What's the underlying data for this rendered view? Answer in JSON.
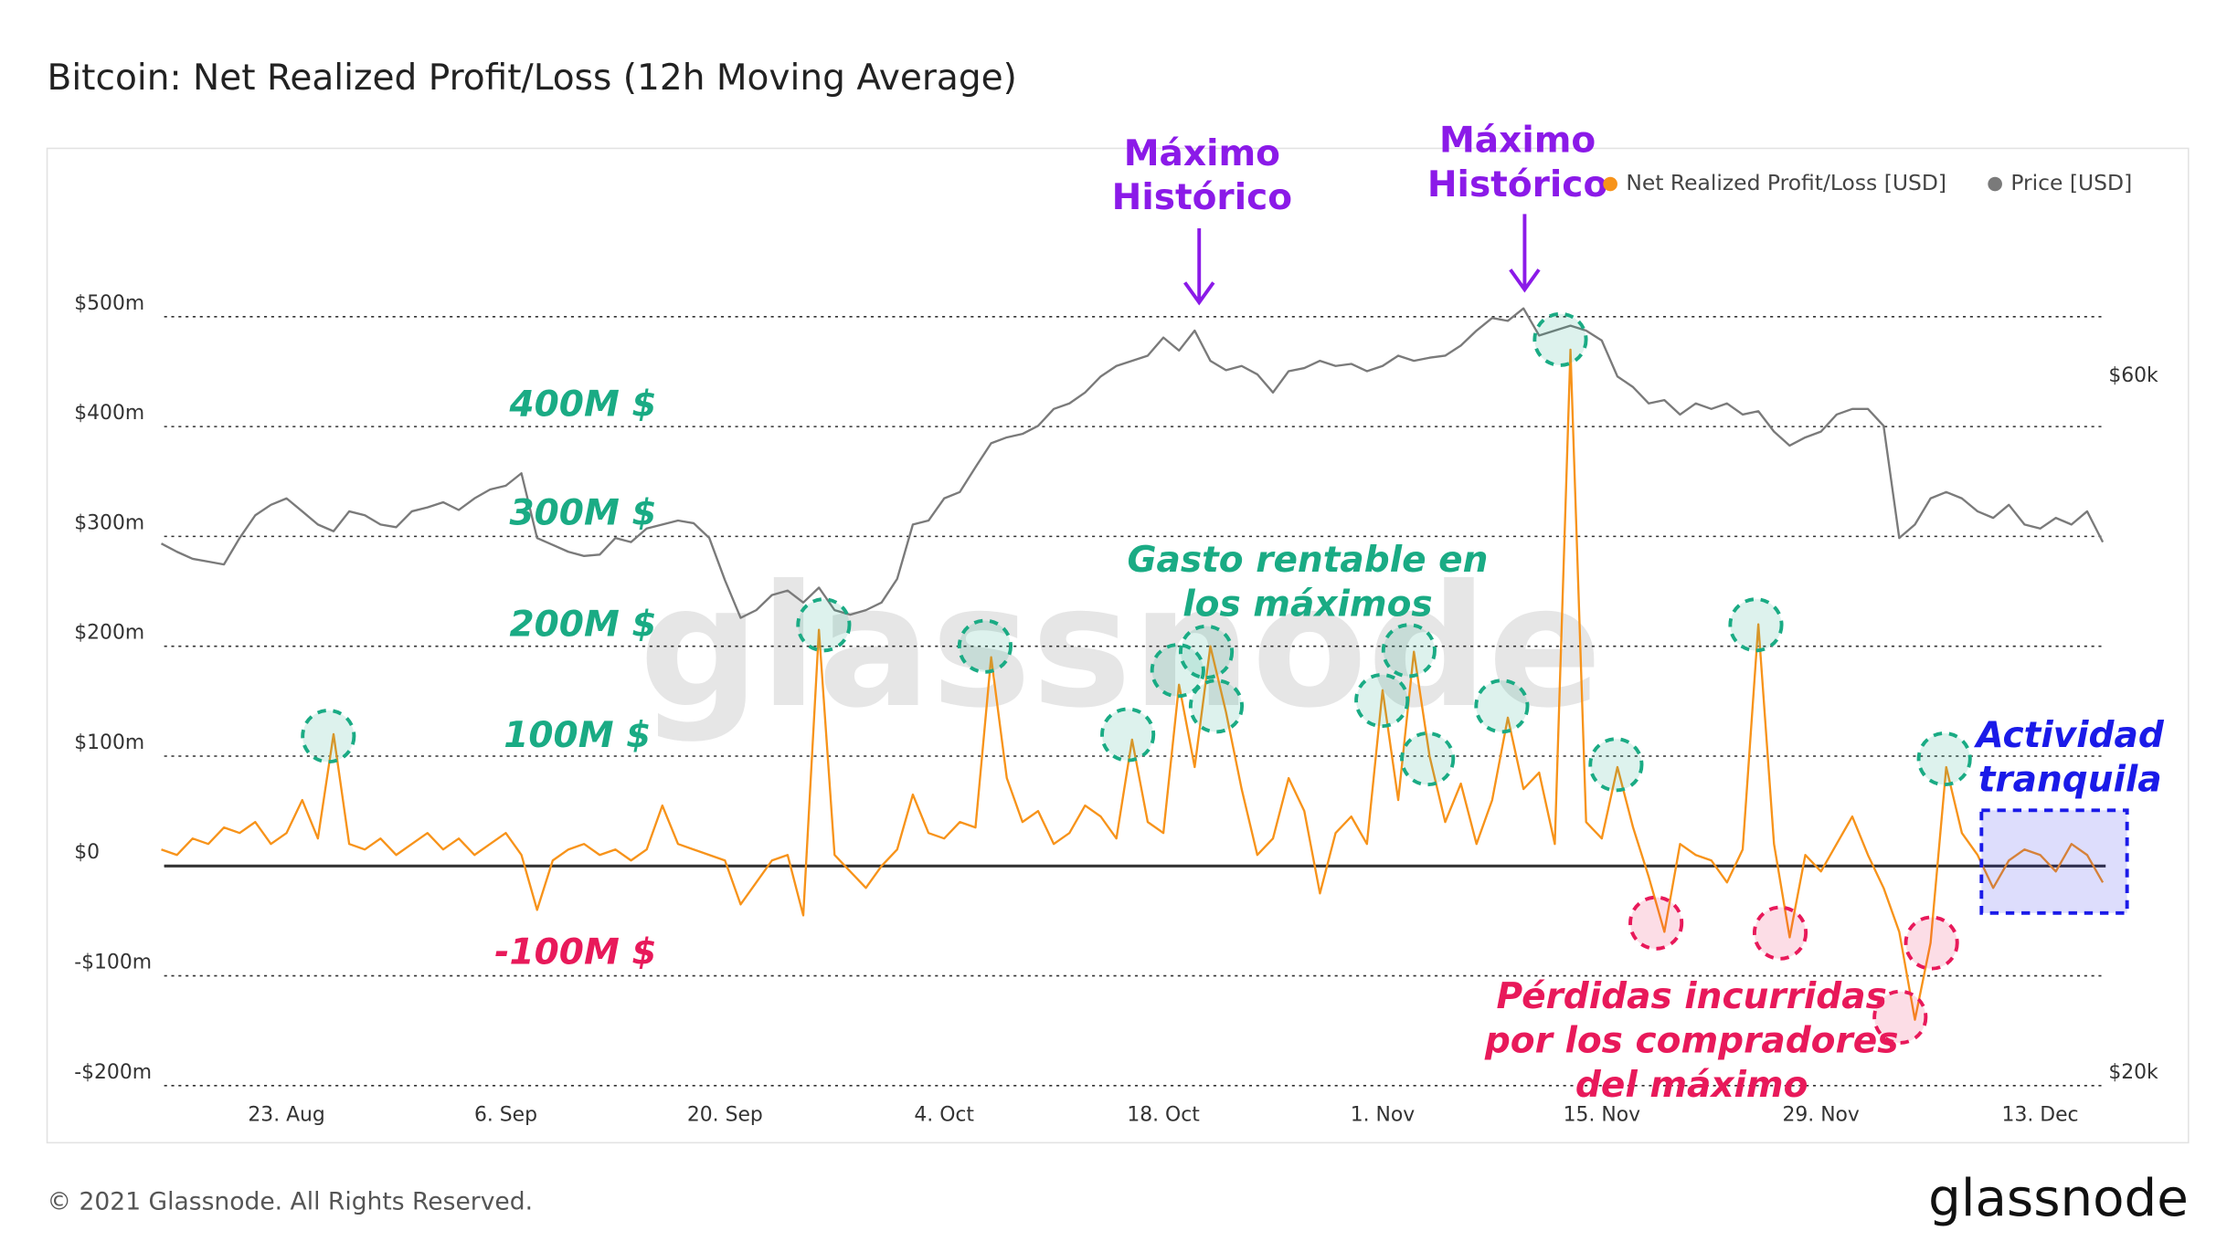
{
  "chart_data": {
    "type": "line",
    "title": "Bitcoin: Net Realized Profit/Loss (12h Moving Average)",
    "categories": [
      null,
      null,
      null,
      null,
      null,
      null,
      null,
      null,
      "23. Aug",
      null,
      null,
      null,
      null,
      null,
      null,
      null,
      null,
      null,
      null,
      null,
      null,
      null,
      "6. Sep",
      null,
      null,
      null,
      null,
      null,
      null,
      null,
      null,
      null,
      null,
      null,
      null,
      null,
      "20. Sep",
      null,
      null,
      null,
      null,
      null,
      null,
      null,
      null,
      null,
      null,
      null,
      null,
      null,
      "4. Oct",
      null,
      null,
      null,
      null,
      null,
      null,
      null,
      null,
      null,
      null,
      null,
      null,
      null,
      "18. Oct",
      null,
      null,
      null,
      null,
      null,
      null,
      null,
      null,
      null,
      null,
      null,
      null,
      null,
      "1. Nov",
      null,
      null,
      null,
      null,
      null,
      null,
      null,
      null,
      null,
      null,
      null,
      null,
      null,
      "15. Nov",
      null,
      null,
      null,
      null,
      null,
      null,
      null,
      null,
      null,
      null,
      null,
      null,
      null,
      "29. Nov",
      null,
      null,
      null,
      null,
      null,
      null,
      null,
      null,
      null,
      null,
      null,
      null,
      null,
      "13. Dec",
      null,
      null,
      null,
      null
    ],
    "series": [
      {
        "name": "Net Realized Profit/Loss [USD]",
        "color": "#f7931a",
        "values": [
          15,
          10,
          25,
          20,
          35,
          30,
          40,
          20,
          30,
          60,
          25,
          120,
          20,
          15,
          25,
          10,
          20,
          30,
          15,
          25,
          10,
          20,
          30,
          10,
          -40,
          5,
          15,
          20,
          10,
          15,
          5,
          15,
          55,
          20,
          15,
          10,
          5,
          -35,
          -15,
          5,
          10,
          -45,
          215,
          10,
          -5,
          -20,
          0,
          15,
          65,
          30,
          25,
          40,
          35,
          190,
          80,
          40,
          50,
          20,
          30,
          55,
          45,
          25,
          115,
          40,
          30,
          165,
          90,
          200,
          140,
          70,
          10,
          25,
          80,
          50,
          -25,
          30,
          45,
          20,
          160,
          60,
          195,
          100,
          40,
          75,
          20,
          60,
          135,
          70,
          85,
          20,
          470,
          40,
          25,
          90,
          35,
          -10,
          -60,
          20,
          10,
          5,
          -15,
          15,
          220,
          20,
          -65,
          10,
          -5,
          20,
          45,
          10,
          -20,
          -60,
          -140,
          -70,
          90,
          30,
          10,
          -20,
          5,
          15,
          10,
          -5,
          20,
          10,
          -15
        ]
      },
      {
        "name": "Price [USD]",
        "color": "#7a7a7a",
        "axis": "y2",
        "values": [
          46.1,
          45.5,
          45,
          44.8,
          44.6,
          46.5,
          48.2,
          49,
          49.5,
          48.5,
          47.5,
          47,
          48.5,
          48.2,
          47.5,
          47.3,
          48.5,
          48.8,
          49.2,
          48.6,
          49.5,
          50.2,
          50.5,
          51.5,
          46.5,
          46,
          45.5,
          45.2,
          45.3,
          46.5,
          46.2,
          47.2,
          47.5,
          47.8,
          47.6,
          46.5,
          43.5,
          41,
          41.5,
          42.5,
          42.8,
          42,
          43,
          41.5,
          41.2,
          41.5,
          42,
          43.6,
          47.5,
          47.8,
          49.5,
          50,
          52,
          54,
          54.5,
          54.8,
          55.5,
          57,
          57.5,
          58.5,
          60,
          61,
          61.5,
          62,
          63.8,
          62.5,
          64.5,
          61.5,
          60.6,
          61,
          60.2,
          58.5,
          60.5,
          60.8,
          61.5,
          61,
          61.2,
          60.5,
          61,
          62,
          61.5,
          61.8,
          62,
          63,
          64.5,
          65.8,
          65.5,
          66.8,
          64,
          64.5,
          65,
          64.5,
          63.5,
          60,
          59,
          57.5,
          57.8,
          56.5,
          57.5,
          57,
          57.5,
          56.5,
          56.8,
          55,
          53.8,
          54.5,
          55,
          56.5,
          57,
          57,
          55.5,
          46.5,
          47.5,
          49.5,
          50,
          49.5,
          48.5,
          48,
          49,
          47.5,
          47.2,
          48,
          47.5,
          48.5,
          46.2
        ]
      }
    ],
    "ylim": [
      -200,
      650
    ],
    "yticks": [
      {
        "value": -200,
        "label": "-$200m"
      },
      {
        "value": -100,
        "label": "-$100m"
      },
      {
        "value": 0,
        "label": "$0"
      },
      {
        "value": 100,
        "label": "$100m"
      },
      {
        "value": 200,
        "label": "$200m"
      },
      {
        "value": 300,
        "label": "$300m"
      },
      {
        "value": 400,
        "label": "$400m"
      },
      {
        "value": 500,
        "label": "$500m"
      }
    ],
    "y2lim": [
      19.6,
      85.5
    ],
    "y2ticks": [
      {
        "value": 20,
        "label": "$20k"
      },
      {
        "value": 60,
        "label": "$60k"
      }
    ],
    "y2log": true,
    "grid": true,
    "legend": "top-right",
    "watermark": "glassnode",
    "annotations": {
      "ath1": [
        "Máximo",
        "Histórico"
      ],
      "ath2": [
        "Máximo",
        "Histórico"
      ],
      "level400": "400M $",
      "level300": "300M $",
      "level200": "200M $",
      "level100": "100M $",
      "levelm100": "-100M $",
      "profit": [
        "Gasto rentable en",
        "los máximos"
      ],
      "losses": [
        "Pérdidas incurridas",
        "por los compradores",
        "del máximo"
      ],
      "quiet": [
        "Actividad",
        "tranquila"
      ]
    }
  },
  "footer": {
    "copyright": "© 2021 Glassnode. All Rights Reserved.",
    "logo": "glassnode"
  }
}
